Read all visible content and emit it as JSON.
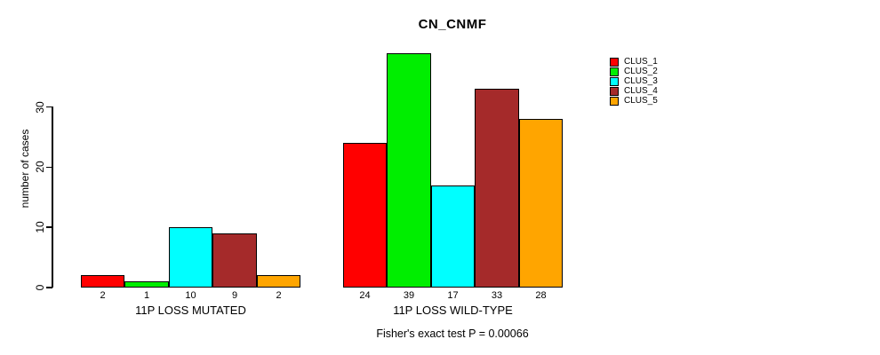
{
  "chart_data": {
    "type": "bar",
    "title": "CN_CNMF",
    "ylabel": "number of cases",
    "xlabel": "",
    "yticks": [
      0,
      10,
      20,
      30
    ],
    "ylim": [
      0,
      39
    ],
    "grid": false,
    "legend_position": "right-outside",
    "groups": [
      {
        "label": "11P LOSS MUTATED",
        "values": [
          2,
          1,
          10,
          9,
          2
        ]
      },
      {
        "label": "11P LOSS WILD-TYPE",
        "values": [
          24,
          39,
          17,
          33,
          28
        ]
      }
    ],
    "series_colors": [
      "#FF0000",
      "#00EE00",
      "#00FFFF",
      "#A52A2A",
      "#FFA500"
    ],
    "legend": [
      {
        "label": "CLUS_1",
        "color": "#FF0000"
      },
      {
        "label": "CLUS_2",
        "color": "#00EE00"
      },
      {
        "label": "CLUS_3",
        "color": "#00FFFF"
      },
      {
        "label": "CLUS_4",
        "color": "#A52A2A"
      },
      {
        "label": "CLUS_5",
        "color": "#FFA500"
      }
    ],
    "bar_value_labels_shown": true,
    "annotation": "Fisher's exact test P = 0.00066"
  }
}
